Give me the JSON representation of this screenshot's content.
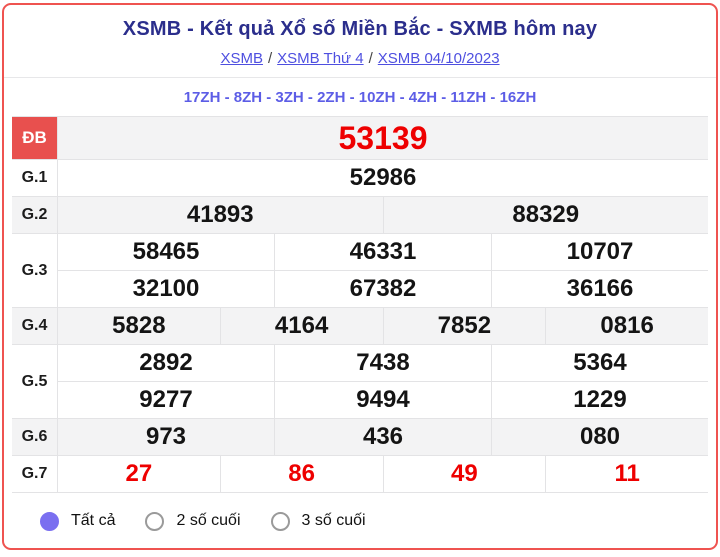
{
  "page": {
    "title": "XSMB - Kết quả Xổ số Miền Bắc - SXMB hôm nay",
    "breadcrumb": {
      "separator": "/",
      "links": [
        {
          "label": "XSMB"
        },
        {
          "label": "XSMB Thứ 4"
        },
        {
          "label": "XSMB 04/10/2023"
        }
      ]
    },
    "zh_line": "17ZH - 8ZH - 3ZH - 2ZH - 10ZH - 4ZH - 11ZH - 16ZH"
  },
  "results": {
    "rows": [
      {
        "label": "ĐB",
        "type": "special",
        "lines": [
          [
            "53139"
          ]
        ]
      },
      {
        "label": "G.1",
        "type": "normal",
        "lines": [
          [
            "52986"
          ]
        ]
      },
      {
        "label": "G.2",
        "type": "normal",
        "lines": [
          [
            "41893",
            "88329"
          ]
        ]
      },
      {
        "label": "G.3",
        "type": "normal",
        "lines": [
          [
            "58465",
            "46331",
            "10707"
          ],
          [
            "32100",
            "67382",
            "36166"
          ]
        ]
      },
      {
        "label": "G.4",
        "type": "normal",
        "lines": [
          [
            "5828",
            "4164",
            "7852",
            "0816"
          ]
        ]
      },
      {
        "label": "G.5",
        "type": "normal",
        "lines": [
          [
            "2892",
            "7438",
            "5364"
          ],
          [
            "9277",
            "9494",
            "1229"
          ]
        ]
      },
      {
        "label": "G.6",
        "type": "normal",
        "lines": [
          [
            "973",
            "436",
            "080"
          ]
        ]
      },
      {
        "label": "G.7",
        "type": "red",
        "lines": [
          [
            "27",
            "86",
            "49",
            "11"
          ]
        ]
      }
    ]
  },
  "filters": {
    "options": [
      {
        "label": "Tất cả",
        "selected": true
      },
      {
        "label": "2 số cuối",
        "selected": false
      },
      {
        "label": "3 số cuối",
        "selected": false
      }
    ]
  },
  "colors": {
    "border-red": "#ef5350",
    "title-navy": "#2b2e8c",
    "link-blue": "#4e4fe0",
    "zh-blue": "#5c5de6",
    "cell-red": "#e8504e",
    "num-red": "#ee0000",
    "row-gray": "#f3f3f4",
    "line-gray": "#e3e3e5",
    "radio-purple": "#7a6ff0"
  }
}
